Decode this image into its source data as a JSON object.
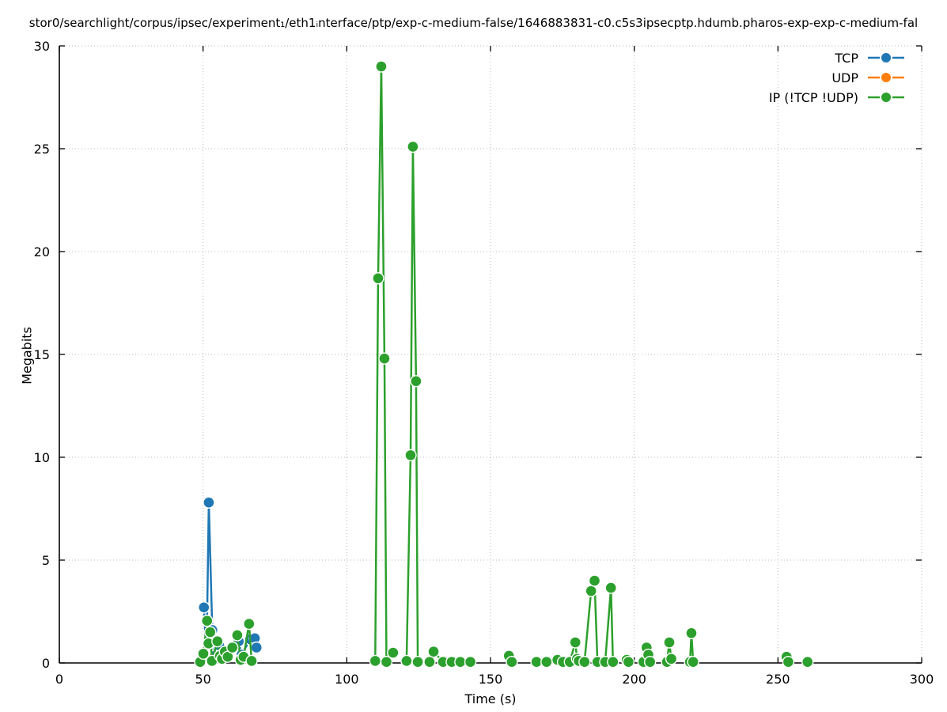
{
  "title": "stor0/searchlight/corpus/ipsec/experiment₁/eth1ᵢnterface/ptp/exp-c-medium-false/1646883831-c0.c5s3ipsecptp.hdumb.pharos-exp-exp-c-medium-fal",
  "chart_data": {
    "type": "line",
    "title": "stor0/searchlight/corpus/ipsec/experiment₁/eth1ᵢnterface/ptp/exp-c-medium-false/1646883831-c0.c5s3ipsecptp.hdumb.pharos-exp-exp-c-medium-fal",
    "xlabel": "Time (s)",
    "ylabel": "Megabits",
    "xlim": [
      0,
      300
    ],
    "ylim": [
      0,
      30
    ],
    "xticks": [
      0,
      50,
      100,
      150,
      200,
      250,
      300
    ],
    "yticks": [
      0,
      5,
      10,
      15,
      20,
      25,
      30
    ],
    "grid": true,
    "grid_style": "dotted",
    "legend_position": "top-right",
    "marker": "circle",
    "series": [
      {
        "name": "TCP",
        "color": "#1f77b4",
        "points": [
          [
            50.3,
            2.7
          ],
          [
            51.2,
            0.25
          ],
          [
            52.0,
            7.8
          ],
          [
            53.2,
            1.6
          ],
          [
            54.2,
            0.35
          ],
          [
            55.6,
            0.85
          ],
          [
            57.0,
            0.3
          ],
          [
            62.4,
            1.05
          ],
          [
            63.4,
            0.4
          ],
          [
            66.4,
            1.15
          ],
          [
            68.0,
            1.2
          ],
          [
            68.6,
            0.75
          ]
        ]
      },
      {
        "name": "UDP",
        "color": "#ff7f0e",
        "points": []
      },
      {
        "name": "IP (!TCP  !UDP)",
        "color": "#2ca02c",
        "points": [
          [
            49.0,
            0.05
          ],
          [
            50.1,
            0.45
          ],
          [
            51.4,
            2.05
          ],
          [
            51.9,
            0.95
          ],
          [
            52.5,
            1.5
          ],
          [
            53.1,
            0.1
          ],
          [
            55.0,
            1.05
          ],
          [
            55.9,
            0.35
          ],
          [
            56.6,
            0.2
          ],
          [
            57.6,
            0.55
          ],
          [
            58.6,
            0.3
          ],
          [
            60.2,
            0.75
          ],
          [
            61.9,
            1.35
          ],
          [
            63.1,
            0.15
          ],
          [
            64.1,
            0.3
          ],
          [
            66.0,
            1.9
          ],
          [
            66.9,
            0.1
          ],
          [
            109.9,
            0.1
          ],
          [
            110.9,
            18.7
          ],
          [
            112.0,
            29.0
          ],
          [
            113.1,
            14.8
          ],
          [
            113.8,
            0.05
          ],
          [
            116.1,
            0.5
          ],
          [
            120.8,
            0.1
          ],
          [
            122.2,
            10.1
          ],
          [
            123.0,
            25.1
          ],
          [
            124.1,
            13.7
          ],
          [
            124.7,
            0.05
          ],
          [
            128.8,
            0.05
          ],
          [
            130.2,
            0.55
          ],
          [
            133.5,
            0.05
          ],
          [
            136.5,
            0.05
          ],
          [
            139.5,
            0.05
          ],
          [
            143.0,
            0.05
          ],
          [
            156.4,
            0.35
          ],
          [
            157.4,
            0.05
          ],
          [
            166.0,
            0.05
          ],
          [
            169.5,
            0.05
          ],
          [
            173.3,
            0.15
          ],
          [
            175.2,
            0.05
          ],
          [
            177.6,
            0.05
          ],
          [
            179.5,
            1.0
          ],
          [
            180.1,
            0.2
          ],
          [
            180.7,
            0.1
          ],
          [
            182.7,
            0.05
          ],
          [
            185.0,
            3.5
          ],
          [
            186.2,
            4.0
          ],
          [
            187.2,
            0.05
          ],
          [
            189.9,
            0.05
          ],
          [
            191.9,
            3.65
          ],
          [
            192.6,
            0.05
          ],
          [
            197.4,
            0.15
          ],
          [
            198.0,
            0.05
          ],
          [
            203.2,
            0.05
          ],
          [
            204.3,
            0.75
          ],
          [
            204.9,
            0.4
          ],
          [
            205.5,
            0.05
          ],
          [
            211.4,
            0.05
          ],
          [
            212.2,
            1.0
          ],
          [
            212.9,
            0.2
          ],
          [
            219.4,
            0.05
          ],
          [
            219.9,
            1.45
          ],
          [
            220.5,
            0.05
          ],
          [
            253.0,
            0.3
          ],
          [
            253.6,
            0.05
          ],
          [
            260.3,
            0.05
          ]
        ]
      }
    ]
  },
  "colors": {
    "axis": "#000000",
    "grid": "#b8b8b8",
    "background": "#ffffff"
  }
}
